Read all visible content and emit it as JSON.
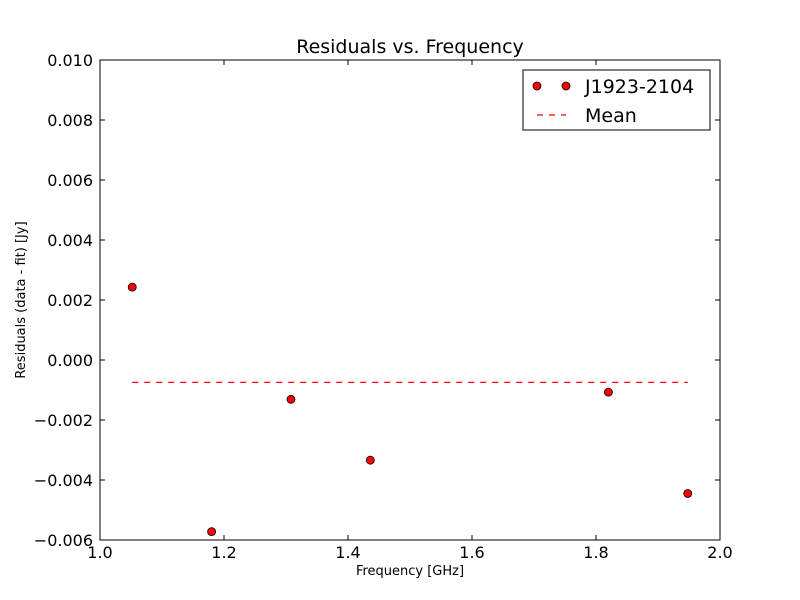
{
  "chart_data": {
    "type": "scatter",
    "title": "Residuals vs. Frequency",
    "xlabel": "Frequency [GHz]",
    "ylabel": "Residuals (data - fit) [Jy]",
    "xlim": [
      1.0,
      2.0
    ],
    "ylim": [
      -0.006,
      0.01
    ],
    "x_ticks": [
      1.0,
      1.2,
      1.4,
      1.6,
      1.8,
      2.0
    ],
    "x_tick_labels": [
      "1.0",
      "1.2",
      "1.4",
      "1.6",
      "1.8",
      "2.0"
    ],
    "y_ticks": [
      0.01,
      0.008,
      0.006,
      0.004,
      0.002,
      0.0,
      -0.002,
      -0.004,
      -0.006
    ],
    "y_tick_labels": [
      "0.010",
      "0.008",
      "0.006",
      "0.004",
      "0.002",
      "0.000",
      "−0.002",
      "−0.004",
      "−0.006"
    ],
    "grid": false,
    "legend_position": "top-right",
    "series": [
      {
        "name": "J1923-2104",
        "kind": "scatter",
        "color": "#ff0000",
        "edge_color": "#000000",
        "x": [
          1.052,
          1.18,
          1.308,
          1.436,
          1.82,
          1.948
        ],
        "y": [
          0.00243,
          -0.00572,
          -0.00131,
          -0.00334,
          -0.00107,
          -0.00445
        ]
      },
      {
        "name": "Mean",
        "kind": "dashed-line",
        "color": "#ff0000",
        "x": [
          1.052,
          1.948
        ],
        "y": [
          -0.000745,
          -0.000745
        ]
      }
    ]
  }
}
